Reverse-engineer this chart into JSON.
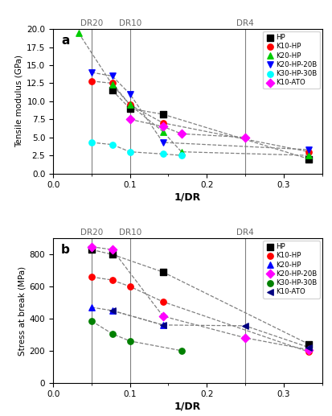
{
  "xlabel": "1/DR",
  "ylabel_a": "Tensile modulus (GPa)",
  "ylabel_b": "Stress at break (MPa)",
  "dr_lines": [
    0.05,
    0.1,
    0.25
  ],
  "dr_labels": [
    "DR20",
    "DR10",
    "DR4"
  ],
  "xlim": [
    0.0,
    0.35
  ],
  "ylim_a": [
    0,
    20
  ],
  "ylim_b": [
    0,
    900
  ],
  "series_a": {
    "HP": {
      "x": [
        0.077,
        0.1,
        0.143,
        0.333
      ],
      "y": [
        11.5,
        9.0,
        8.2,
        2.0
      ],
      "color": "black",
      "marker": "s",
      "label": "HP"
    },
    "K10-HP": {
      "x": [
        0.05,
        0.077,
        0.1,
        0.143,
        0.333
      ],
      "y": [
        12.8,
        12.5,
        9.5,
        7.0,
        3.0
      ],
      "color": "red",
      "marker": "o",
      "label": "K10-HP"
    },
    "K20-HP": {
      "x": [
        0.033,
        0.077,
        0.1,
        0.143,
        0.167,
        0.333
      ],
      "y": [
        19.5,
        12.3,
        9.5,
        5.8,
        3.0,
        2.5
      ],
      "color": "#00cc00",
      "marker": "^",
      "label": "K20-HP"
    },
    "K20-HP-20B": {
      "x": [
        0.05,
        0.077,
        0.1,
        0.143,
        0.333
      ],
      "y": [
        14.0,
        13.5,
        11.0,
        4.3,
        3.3
      ],
      "color": "blue",
      "marker": "v",
      "label": "K20-HP-20B"
    },
    "K30-HP-30B": {
      "x": [
        0.05,
        0.077,
        0.1,
        0.143,
        0.167
      ],
      "y": [
        4.3,
        4.0,
        3.0,
        2.7,
        2.5
      ],
      "color": "cyan",
      "marker": "o",
      "label": "K30-HP-30B"
    },
    "K10-ATO": {
      "x": [
        0.1,
        0.143,
        0.167,
        0.25
      ],
      "y": [
        7.5,
        6.5,
        5.5,
        5.0
      ],
      "color": "magenta",
      "marker": "D",
      "label": "K10-ATO"
    }
  },
  "series_b": {
    "HP": {
      "x": [
        0.05,
        0.077,
        0.143,
        0.333
      ],
      "y": [
        830,
        800,
        690,
        240
      ],
      "color": "black",
      "marker": "s",
      "label": "HP"
    },
    "K10-HP": {
      "x": [
        0.05,
        0.077,
        0.1,
        0.143,
        0.333
      ],
      "y": [
        660,
        640,
        600,
        505,
        192
      ],
      "color": "red",
      "marker": "o",
      "label": "K10-HP"
    },
    "K20-HP": {
      "x": [
        0.05,
        0.077,
        0.143
      ],
      "y": [
        470,
        450,
        360
      ],
      "color": "blue",
      "marker": "^",
      "label": "K20-HP"
    },
    "K20-HP-20B": {
      "x": [
        0.05,
        0.077,
        0.143,
        0.25,
        0.333
      ],
      "y": [
        848,
        830,
        415,
        280,
        205
      ],
      "color": "magenta",
      "marker": "D",
      "label": "K20-HP-20B"
    },
    "K30-HP-30B": {
      "x": [
        0.05,
        0.077,
        0.1,
        0.167
      ],
      "y": [
        385,
        305,
        260,
        200
      ],
      "color": "green",
      "marker": "o",
      "label": "K30-HP-30B"
    },
    "K10-ATO": {
      "x": [
        0.077,
        0.143,
        0.25,
        0.333
      ],
      "y": [
        450,
        360,
        355,
        220
      ],
      "color": "#000080",
      "marker": "<",
      "label": "K10-ATO"
    }
  },
  "legend_order_a": [
    "HP",
    "K10-HP",
    "K20-HP",
    "K20-HP-20B",
    "K30-HP-30B",
    "K10-ATO"
  ],
  "legend_order_b": [
    "HP",
    "K10-HP",
    "K20-HP",
    "K20-HP-20B",
    "K30-HP-30B",
    "K10-ATO"
  ]
}
